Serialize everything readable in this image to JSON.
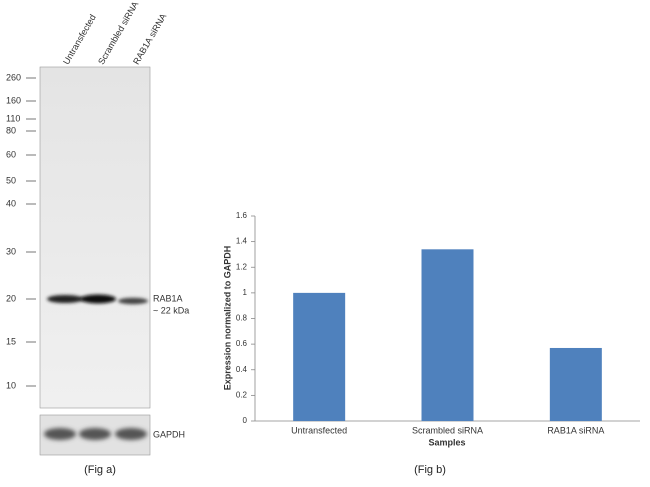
{
  "chart_data": {
    "type": "bar",
    "title": "(Fig b)",
    "x_label": "Samples",
    "y_label": "Expression  normalized to GAPDH",
    "categories": [
      "Untransfected",
      "Scrambled siRNA",
      "RAB1A siRNA"
    ],
    "values": [
      1.0,
      1.34,
      0.57
    ],
    "color": "#4f81bd",
    "ylim": [
      0,
      1.6
    ],
    "yticks": [
      0,
      0.2,
      0.4,
      0.6,
      0.8,
      1,
      1.2,
      1.4,
      1.6
    ],
    "grid": false
  },
  "blot": {
    "title": "(Fig a)",
    "lanes": [
      "Untransfected",
      "Scrambled siRNA",
      "RAB1A siRNA"
    ],
    "markers": [
      260,
      160,
      110,
      80,
      60,
      50,
      40,
      30,
      20,
      15,
      10
    ],
    "band_label": "RAB1A",
    "band_size": "~ 22 kDa",
    "control_label": "GAPDH"
  }
}
